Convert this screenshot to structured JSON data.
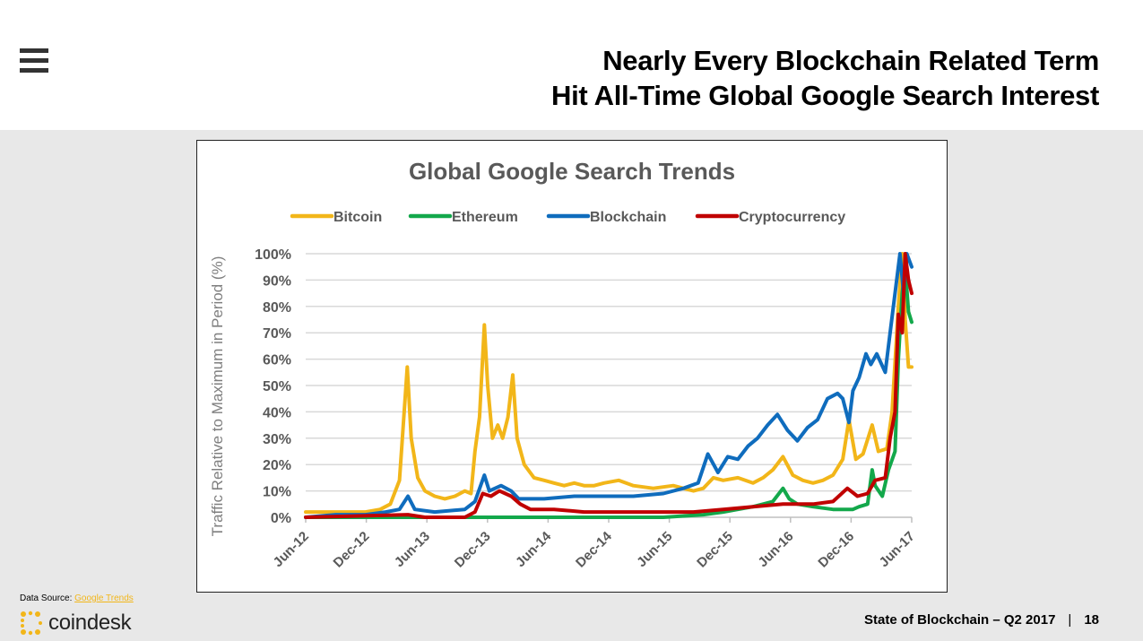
{
  "header": {
    "title_line1": "Nearly Every Blockchain Related Term",
    "title_line2": "Hit All-Time Global Google Search Interest"
  },
  "footer": {
    "source_prefix": "Data Source: ",
    "source_link": "Google Trends",
    "logo_text": "coindesk",
    "report": "State of Blockchain – Q2 2017",
    "separator": "|",
    "page": "18"
  },
  "colors": {
    "bitcoin": "#f2b619",
    "ethereum": "#13a84b",
    "blockchain": "#0f6cbd",
    "cryptocurrency": "#c00000",
    "header_bg": "#ffffff",
    "slide_bg": "#e8e8e8"
  },
  "chart_data": {
    "type": "line",
    "title": "Global Google Search Trends",
    "ylabel": "Traffic Relative to Maximum in Period (%)",
    "xlabel": "",
    "ylim": [
      0,
      100
    ],
    "yticks": [
      "0%",
      "10%",
      "20%",
      "30%",
      "40%",
      "50%",
      "60%",
      "70%",
      "80%",
      "90%",
      "100%"
    ],
    "xticks": [
      "Jun-12",
      "Dec-12",
      "Jun-13",
      "Dec-13",
      "Jun-14",
      "Dec-14",
      "Jun-15",
      "Dec-15",
      "Jun-16",
      "Dec-16",
      "Jun-17"
    ],
    "legend_position": "top",
    "grid": true,
    "series": [
      {
        "name": "Bitcoin",
        "color": "#f2b619",
        "points": [
          [
            "2012-06-01",
            2
          ],
          [
            "2012-08-01",
            2
          ],
          [
            "2012-10-01",
            2
          ],
          [
            "2012-12-01",
            2
          ],
          [
            "2013-01-15",
            3
          ],
          [
            "2013-02-15",
            5
          ],
          [
            "2013-03-15",
            14
          ],
          [
            "2013-04-08",
            57
          ],
          [
            "2013-04-20",
            30
          ],
          [
            "2013-05-10",
            15
          ],
          [
            "2013-06-01",
            10
          ],
          [
            "2013-07-01",
            8
          ],
          [
            "2013-08-01",
            7
          ],
          [
            "2013-09-01",
            8
          ],
          [
            "2013-10-01",
            10
          ],
          [
            "2013-10-20",
            9
          ],
          [
            "2013-11-01",
            25
          ],
          [
            "2013-11-15",
            38
          ],
          [
            "2013-11-30",
            73
          ],
          [
            "2013-12-10",
            50
          ],
          [
            "2013-12-25",
            30
          ],
          [
            "2014-01-10",
            35
          ],
          [
            "2014-01-25",
            30
          ],
          [
            "2014-02-10",
            38
          ],
          [
            "2014-02-25",
            54
          ],
          [
            "2014-03-10",
            30
          ],
          [
            "2014-04-01",
            20
          ],
          [
            "2014-05-01",
            15
          ],
          [
            "2014-06-01",
            14
          ],
          [
            "2014-07-01",
            13
          ],
          [
            "2014-08-01",
            12
          ],
          [
            "2014-09-01",
            13
          ],
          [
            "2014-10-01",
            12
          ],
          [
            "2014-11-01",
            12
          ],
          [
            "2014-12-01",
            13
          ],
          [
            "2015-01-15",
            14
          ],
          [
            "2015-03-01",
            12
          ],
          [
            "2015-05-01",
            11
          ],
          [
            "2015-07-01",
            12
          ],
          [
            "2015-08-01",
            11
          ],
          [
            "2015-09-01",
            10
          ],
          [
            "2015-10-01",
            11
          ],
          [
            "2015-11-01",
            15
          ],
          [
            "2015-12-01",
            14
          ],
          [
            "2016-01-15",
            15
          ],
          [
            "2016-03-01",
            13
          ],
          [
            "2016-04-01",
            15
          ],
          [
            "2016-05-01",
            18
          ],
          [
            "2016-06-01",
            23
          ],
          [
            "2016-07-01",
            16
          ],
          [
            "2016-08-01",
            14
          ],
          [
            "2016-09-01",
            13
          ],
          [
            "2016-10-01",
            14
          ],
          [
            "2016-11-01",
            16
          ],
          [
            "2016-12-01",
            22
          ],
          [
            "2016-12-20",
            37
          ],
          [
            "2017-01-10",
            22
          ],
          [
            "2017-02-01",
            24
          ],
          [
            "2017-03-01",
            35
          ],
          [
            "2017-03-20",
            25
          ],
          [
            "2017-04-15",
            26
          ],
          [
            "2017-05-01",
            40
          ],
          [
            "2017-05-20",
            80
          ],
          [
            "2017-06-01",
            100
          ],
          [
            "2017-06-10",
            75
          ],
          [
            "2017-06-20",
            57
          ],
          [
            "2017-06-30",
            57
          ]
        ]
      },
      {
        "name": "Ethereum",
        "color": "#13a84b",
        "points": [
          [
            "2012-06-01",
            0
          ],
          [
            "2013-10-01",
            0
          ],
          [
            "2014-06-01",
            0
          ],
          [
            "2015-06-01",
            0
          ],
          [
            "2015-10-01",
            1
          ],
          [
            "2015-12-01",
            2
          ],
          [
            "2016-01-15",
            3
          ],
          [
            "2016-03-01",
            4
          ],
          [
            "2016-04-01",
            5
          ],
          [
            "2016-05-01",
            6
          ],
          [
            "2016-06-01",
            11
          ],
          [
            "2016-06-20",
            7
          ],
          [
            "2016-07-15",
            5
          ],
          [
            "2016-09-01",
            4
          ],
          [
            "2016-11-01",
            3
          ],
          [
            "2017-01-01",
            3
          ],
          [
            "2017-01-20",
            4
          ],
          [
            "2017-02-15",
            5
          ],
          [
            "2017-03-01",
            18
          ],
          [
            "2017-03-10",
            12
          ],
          [
            "2017-04-01",
            8
          ],
          [
            "2017-04-20",
            18
          ],
          [
            "2017-05-10",
            25
          ],
          [
            "2017-05-20",
            60
          ],
          [
            "2017-06-01",
            85
          ],
          [
            "2017-06-10",
            95
          ],
          [
            "2017-06-20",
            78
          ],
          [
            "2017-06-30",
            74
          ]
        ]
      },
      {
        "name": "Blockchain",
        "color": "#0f6cbd",
        "points": [
          [
            "2012-06-01",
            0
          ],
          [
            "2012-09-01",
            1
          ],
          [
            "2012-12-01",
            1
          ],
          [
            "2013-02-01",
            2
          ],
          [
            "2013-03-15",
            3
          ],
          [
            "2013-04-10",
            8
          ],
          [
            "2013-05-01",
            3
          ],
          [
            "2013-07-01",
            2
          ],
          [
            "2013-10-01",
            3
          ],
          [
            "2013-11-01",
            6
          ],
          [
            "2013-11-30",
            16
          ],
          [
            "2013-12-15",
            10
          ],
          [
            "2014-01-20",
            12
          ],
          [
            "2014-02-20",
            10
          ],
          [
            "2014-03-15",
            7
          ],
          [
            "2014-06-01",
            7
          ],
          [
            "2014-09-01",
            8
          ],
          [
            "2014-12-01",
            8
          ],
          [
            "2015-03-01",
            8
          ],
          [
            "2015-06-01",
            9
          ],
          [
            "2015-08-01",
            11
          ],
          [
            "2015-09-15",
            13
          ],
          [
            "2015-10-15",
            24
          ],
          [
            "2015-11-15",
            17
          ],
          [
            "2015-12-15",
            23
          ],
          [
            "2016-01-15",
            22
          ],
          [
            "2016-02-15",
            27
          ],
          [
            "2016-03-15",
            30
          ],
          [
            "2016-04-15",
            35
          ],
          [
            "2016-05-15",
            39
          ],
          [
            "2016-06-15",
            33
          ],
          [
            "2016-07-15",
            29
          ],
          [
            "2016-08-15",
            34
          ],
          [
            "2016-09-15",
            37
          ],
          [
            "2016-10-15",
            45
          ],
          [
            "2016-11-15",
            47
          ],
          [
            "2016-12-01",
            45
          ],
          [
            "2016-12-20",
            36
          ],
          [
            "2017-01-01",
            48
          ],
          [
            "2017-01-20",
            53
          ],
          [
            "2017-02-10",
            62
          ],
          [
            "2017-02-25",
            58
          ],
          [
            "2017-03-15",
            62
          ],
          [
            "2017-04-10",
            55
          ],
          [
            "2017-04-25",
            70
          ],
          [
            "2017-05-10",
            85
          ],
          [
            "2017-05-25",
            100
          ],
          [
            "2017-06-05",
            85
          ],
          [
            "2017-06-15",
            100
          ],
          [
            "2017-06-30",
            95
          ]
        ]
      },
      {
        "name": "Cryptocurrency",
        "color": "#c00000",
        "points": [
          [
            "2012-06-01",
            0
          ],
          [
            "2013-04-10",
            1
          ],
          [
            "2013-06-01",
            0
          ],
          [
            "2013-10-01",
            0
          ],
          [
            "2013-11-01",
            2
          ],
          [
            "2013-11-25",
            9
          ],
          [
            "2013-12-20",
            8
          ],
          [
            "2014-01-15",
            10
          ],
          [
            "2014-02-20",
            8
          ],
          [
            "2014-03-20",
            5
          ],
          [
            "2014-04-20",
            3
          ],
          [
            "2014-07-01",
            3
          ],
          [
            "2014-10-01",
            2
          ],
          [
            "2015-03-01",
            2
          ],
          [
            "2015-09-01",
            2
          ],
          [
            "2015-12-01",
            3
          ],
          [
            "2016-03-01",
            4
          ],
          [
            "2016-06-01",
            5
          ],
          [
            "2016-09-01",
            5
          ],
          [
            "2016-11-01",
            6
          ],
          [
            "2016-12-15",
            11
          ],
          [
            "2017-01-15",
            8
          ],
          [
            "2017-02-15",
            9
          ],
          [
            "2017-03-10",
            14
          ],
          [
            "2017-04-10",
            15
          ],
          [
            "2017-04-25",
            30
          ],
          [
            "2017-05-10",
            40
          ],
          [
            "2017-05-20",
            77
          ],
          [
            "2017-06-01",
            70
          ],
          [
            "2017-06-10",
            100
          ],
          [
            "2017-06-20",
            90
          ],
          [
            "2017-06-30",
            85
          ]
        ]
      }
    ]
  }
}
